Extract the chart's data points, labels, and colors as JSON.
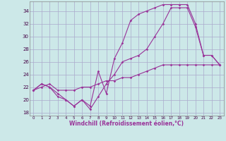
{
  "background_color": "#cce8e8",
  "grid_color": "#aaaacc",
  "line_color": "#993399",
  "xlabel": "Windchill (Refroidissement éolien,°C)",
  "ylabel_ticks": [
    18,
    20,
    22,
    24,
    26,
    28,
    30,
    32,
    34
  ],
  "xlim": [
    -0.5,
    23.5
  ],
  "ylim": [
    17.5,
    35.5
  ],
  "xticks": [
    0,
    1,
    2,
    3,
    4,
    5,
    6,
    7,
    8,
    9,
    10,
    11,
    12,
    13,
    14,
    15,
    16,
    17,
    18,
    19,
    20,
    21,
    22,
    23
  ],
  "line1_x": [
    0,
    1,
    2,
    3,
    4,
    5,
    6,
    7,
    8,
    9,
    10,
    11,
    12,
    13,
    14,
    15,
    16,
    17,
    18,
    19,
    20,
    21,
    22,
    23
  ],
  "line1_y": [
    21.5,
    22.5,
    22.0,
    21.0,
    20.0,
    19.0,
    20.0,
    19.0,
    24.5,
    21.0,
    26.5,
    29.0,
    32.5,
    33.5,
    34.0,
    34.5,
    35.0,
    35.0,
    35.0,
    35.0,
    32.0,
    27.0,
    27.0,
    25.5
  ],
  "line2_x": [
    0,
    1,
    2,
    3,
    4,
    5,
    6,
    7,
    8,
    9,
    10,
    11,
    12,
    13,
    14,
    15,
    16,
    17,
    18,
    19,
    20,
    21,
    22,
    23
  ],
  "line2_y": [
    21.5,
    22.5,
    22.0,
    20.5,
    20.0,
    19.0,
    20.0,
    18.5,
    20.5,
    22.5,
    24.0,
    26.0,
    26.5,
    27.0,
    28.0,
    30.0,
    32.0,
    34.5,
    34.5,
    34.5,
    31.5,
    27.0,
    27.0,
    25.5
  ],
  "line3_x": [
    0,
    1,
    2,
    3,
    4,
    5,
    6,
    7,
    8,
    9,
    10,
    11,
    12,
    13,
    14,
    15,
    16,
    17,
    18,
    19,
    20,
    21,
    22,
    23
  ],
  "line3_y": [
    21.5,
    22.0,
    22.5,
    21.5,
    21.5,
    21.5,
    22.0,
    22.0,
    22.5,
    23.0,
    23.0,
    23.5,
    23.5,
    24.0,
    24.5,
    25.0,
    25.5,
    25.5,
    25.5,
    25.5,
    25.5,
    25.5,
    25.5,
    25.5
  ]
}
